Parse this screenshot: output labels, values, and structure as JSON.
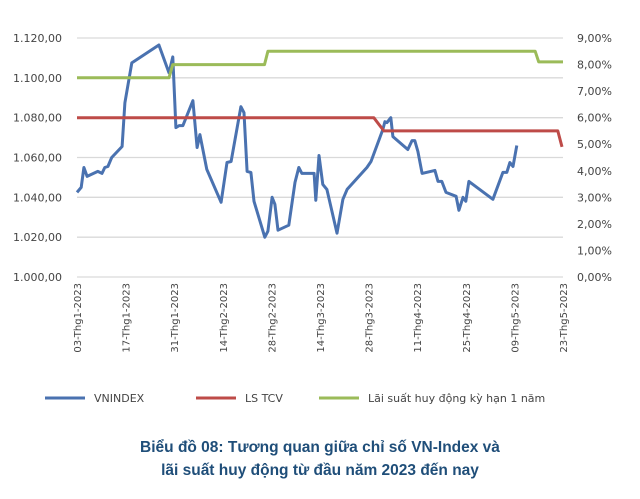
{
  "chart_data": {
    "type": "line",
    "title": [
      "Biểu đồ 08: Tương quan giữa chỉ số VN-Index và",
      "lãi suất huy động từ đầu năm 2023 đến nay"
    ],
    "x_unit": "days since 03-Thg1-2023",
    "x_range": [
      0,
      140
    ],
    "x_ticks": [
      {
        "day": 0,
        "label": "03-Thg1-2023"
      },
      {
        "day": 14,
        "label": "17-Thg1-2023"
      },
      {
        "day": 28,
        "label": "31-Thg1-2023"
      },
      {
        "day": 42,
        "label": "14-Thg2-2023"
      },
      {
        "day": 56,
        "label": "28-Thg2-2023"
      },
      {
        "day": 70,
        "label": "14-Thg3-2023"
      },
      {
        "day": 84,
        "label": "28-Thg3-2023"
      },
      {
        "day": 98,
        "label": "11-Thg4-2023"
      },
      {
        "day": 112,
        "label": "25-Thg4-2023"
      },
      {
        "day": 126,
        "label": "09-Thg5-2023"
      },
      {
        "day": 140,
        "label": "23-Thg5-2023"
      }
    ],
    "y_left": {
      "range": [
        1000,
        1120
      ],
      "ticks": [
        "1.000,00",
        "1.020,00",
        "1.040,00",
        "1.060,00",
        "1.080,00",
        "1.100,00",
        "1.120,00"
      ]
    },
    "y_right": {
      "range": [
        0,
        9
      ],
      "ticks": [
        "0,00%",
        "1,00%",
        "2,00%",
        "3,00%",
        "4,00%",
        "5,00%",
        "6,00%",
        "7,00%",
        "8,00%",
        "9,00%"
      ]
    },
    "grid": true,
    "legend_position": "bottom",
    "series": [
      {
        "name": "VNINDEX",
        "axis": "left",
        "color": "#4a72b0",
        "points": [
          [
            0,
            1042.5
          ],
          [
            1.2,
            1045
          ],
          [
            2,
            1055
          ],
          [
            2.9,
            1050.5
          ],
          [
            6,
            1053
          ],
          [
            7.2,
            1052
          ],
          [
            8,
            1055
          ],
          [
            8.9,
            1055.5
          ],
          [
            10,
            1060
          ],
          [
            13,
            1065.5
          ],
          [
            13.8,
            1087.5
          ],
          [
            15.8,
            1107.5
          ],
          [
            23.6,
            1116.5
          ],
          [
            26.5,
            1102.5
          ],
          [
            27.6,
            1110.5
          ],
          [
            28.5,
            1075
          ],
          [
            29.4,
            1076
          ],
          [
            30.5,
            1076
          ],
          [
            33.4,
            1088.5
          ],
          [
            34.6,
            1065
          ],
          [
            35.4,
            1071.5
          ],
          [
            37.4,
            1054
          ],
          [
            41.5,
            1037.5
          ],
          [
            43.2,
            1057.5
          ],
          [
            44.4,
            1058
          ],
          [
            47.2,
            1085.5
          ],
          [
            48.1,
            1082.5
          ],
          [
            49,
            1053
          ],
          [
            50.1,
            1052.5
          ],
          [
            51,
            1038
          ],
          [
            54.1,
            1020
          ],
          [
            55,
            1023
          ],
          [
            56.2,
            1040
          ],
          [
            57,
            1036.5
          ],
          [
            57.9,
            1023.5
          ],
          [
            61,
            1026
          ],
          [
            62.8,
            1047.5
          ],
          [
            63.9,
            1055
          ],
          [
            64.8,
            1052
          ],
          [
            68.3,
            1052
          ],
          [
            68.8,
            1038.5
          ],
          [
            69.7,
            1061
          ],
          [
            70.8,
            1046.5
          ],
          [
            72,
            1044
          ],
          [
            74.9,
            1022
          ],
          [
            76.6,
            1039
          ],
          [
            77.8,
            1044
          ],
          [
            83.5,
            1055
          ],
          [
            84.7,
            1058
          ],
          [
            88.1,
            1074
          ],
          [
            88.7,
            1078
          ],
          [
            89.3,
            1077.5
          ],
          [
            90.4,
            1080
          ],
          [
            91,
            1070.5
          ],
          [
            95.3,
            1064
          ],
          [
            96.5,
            1068.5
          ],
          [
            97.3,
            1068.5
          ],
          [
            98.2,
            1063
          ],
          [
            99.4,
            1052
          ],
          [
            103.1,
            1053.5
          ],
          [
            104,
            1048
          ],
          [
            105.1,
            1048
          ],
          [
            106.3,
            1042.5
          ],
          [
            109.2,
            1040.5
          ],
          [
            110,
            1033.5
          ],
          [
            111.2,
            1040
          ],
          [
            112,
            1038
          ],
          [
            112.9,
            1048
          ],
          [
            119.8,
            1039
          ],
          [
            122.7,
            1052.5
          ],
          [
            123.8,
            1052.5
          ],
          [
            124.7,
            1057.5
          ],
          [
            125.6,
            1055.5
          ],
          [
            126.7,
            1066
          ]
        ]
      },
      {
        "name": "LS TCV",
        "axis": "right",
        "color": "#be4b48",
        "points": [
          [
            0,
            6.0
          ],
          [
            85.5,
            6.0
          ],
          [
            88.4,
            5.5
          ],
          [
            138.5,
            5.5
          ],
          [
            139.7,
            4.9
          ]
        ]
      },
      {
        "name": "Lãi suất huy động kỳ hạn 1 năm",
        "axis": "right",
        "color": "#9bbb59",
        "points": [
          [
            0,
            7.5
          ],
          [
            26.5,
            7.5
          ],
          [
            27.6,
            8.0
          ],
          [
            54,
            8.0
          ],
          [
            55,
            8.5
          ],
          [
            132,
            8.5
          ],
          [
            133,
            8.1
          ],
          [
            140,
            8.1
          ]
        ]
      }
    ]
  }
}
